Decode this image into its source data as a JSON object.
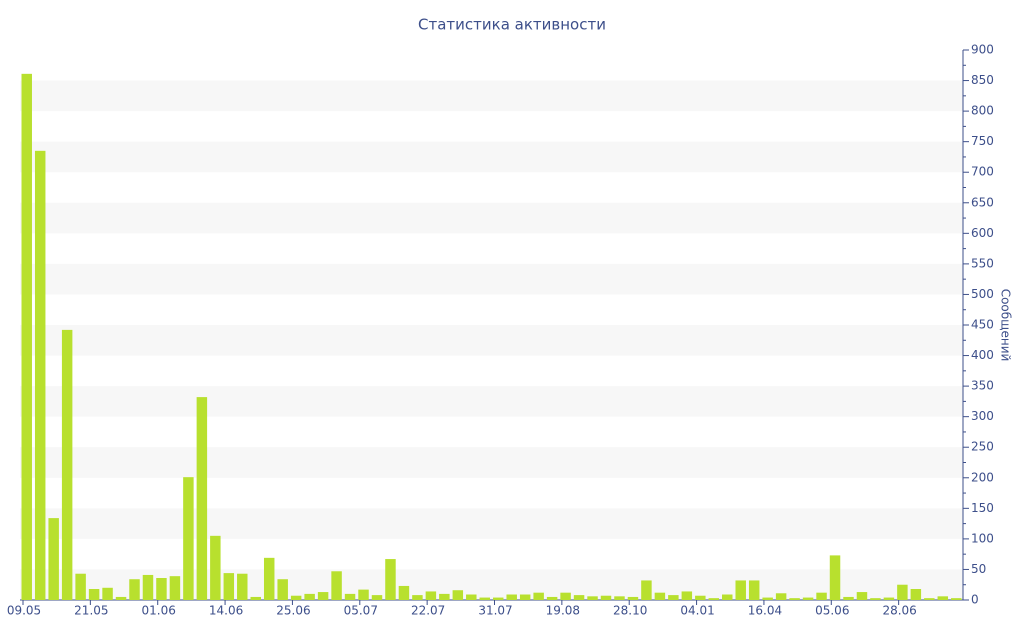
{
  "chart_data": {
    "type": "bar",
    "title": "Статистика активности",
    "y_label": "Сообщений",
    "categories": [
      "09.05",
      null,
      null,
      null,
      null,
      "21.05",
      null,
      null,
      null,
      null,
      "01.06",
      null,
      null,
      null,
      null,
      "14.06",
      null,
      null,
      null,
      null,
      "25.06",
      null,
      null,
      null,
      null,
      "05.07",
      null,
      null,
      null,
      null,
      "22.07",
      null,
      null,
      null,
      null,
      "31.07",
      null,
      null,
      null,
      null,
      "19.08",
      null,
      null,
      null,
      null,
      "28.10",
      null,
      null,
      null,
      null,
      "04.01",
      null,
      null,
      null,
      null,
      "16.04",
      null,
      null,
      null,
      null,
      "05.06",
      null,
      null,
      null,
      null,
      "28.06",
      null,
      null,
      null,
      null
    ],
    "values": [
      861,
      735,
      134,
      442,
      43,
      18,
      20,
      5,
      34,
      41,
      36,
      39,
      201,
      332,
      105,
      44,
      43,
      5,
      69,
      34,
      7,
      10,
      13,
      47,
      10,
      17,
      8,
      67,
      23,
      8,
      14,
      10,
      16,
      9,
      4,
      4,
      9,
      9,
      12,
      5,
      12,
      8,
      6,
      7,
      6,
      5,
      32,
      12,
      8,
      14,
      7,
      3,
      9,
      32,
      32,
      4,
      11,
      3,
      4,
      12,
      73,
      5,
      13,
      3,
      4,
      25,
      18,
      3,
      6,
      3
    ],
    "color": "#b8e02e",
    "ylim": [
      0,
      900
    ],
    "yticks": [
      0,
      50,
      100,
      150,
      200,
      250,
      300,
      350,
      400,
      450,
      500,
      550,
      600,
      650,
      700,
      750,
      800,
      850,
      900
    ],
    "y_axis_side": "right",
    "grid": "bands"
  }
}
